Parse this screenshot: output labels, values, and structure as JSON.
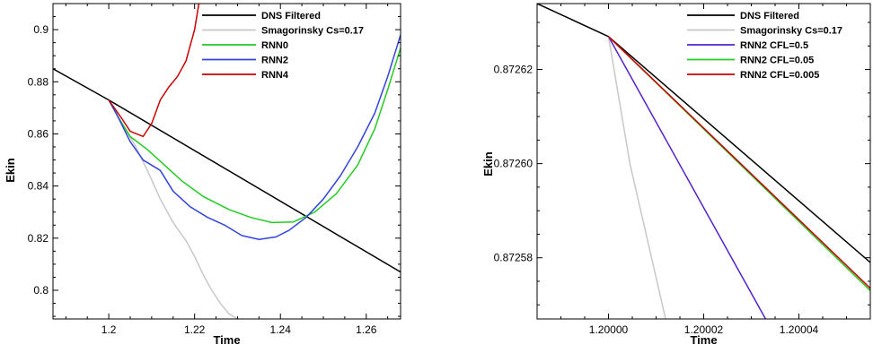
{
  "chart_data": [
    {
      "type": "line",
      "xlabel": "Time",
      "ylabel": "Ekin",
      "xlim": [
        1.187,
        1.268
      ],
      "ylim": [
        0.789,
        0.91
      ],
      "xticks": [
        1.2,
        1.22,
        1.24,
        1.26
      ],
      "xtick_labels": [
        "1.2",
        "1.22",
        "1.24",
        "1.26"
      ],
      "yticks": [
        0.8,
        0.82,
        0.84,
        0.86,
        0.88,
        0.9
      ],
      "ytick_labels": [
        "0.8",
        "0.82",
        "0.84",
        "0.86",
        "0.88",
        "0.9"
      ],
      "grid": false,
      "legend_position": "top-right",
      "series": [
        {
          "name": "DNS Filtered",
          "color": "#000000",
          "points": [
            [
              1.187,
              0.885
            ],
            [
              1.2,
              0.873
            ],
            [
              1.268,
              0.807
            ]
          ]
        },
        {
          "name": "Smagorinsky Cs=0.17",
          "color": "#c8c8c8",
          "points": [
            [
              1.2,
              0.873
            ],
            [
              1.203,
              0.864
            ],
            [
              1.206,
              0.856
            ],
            [
              1.209,
              0.846
            ],
            [
              1.212,
              0.835
            ],
            [
              1.215,
              0.826
            ],
            [
              1.218,
              0.819
            ],
            [
              1.22,
              0.813
            ],
            [
              1.222,
              0.806
            ],
            [
              1.224,
              0.8
            ],
            [
              1.226,
              0.795
            ],
            [
              1.228,
              0.791
            ],
            [
              1.23,
              0.789
            ]
          ]
        },
        {
          "name": "RNN0",
          "color": "#22cc22",
          "points": [
            [
              1.2,
              0.873
            ],
            [
              1.202,
              0.867
            ],
            [
              1.205,
              0.859
            ],
            [
              1.209,
              0.854
            ],
            [
              1.213,
              0.848
            ],
            [
              1.217,
              0.842
            ],
            [
              1.222,
              0.836
            ],
            [
              1.228,
              0.831
            ],
            [
              1.233,
              0.828
            ],
            [
              1.238,
              0.826
            ],
            [
              1.243,
              0.8262
            ],
            [
              1.248,
              0.83
            ],
            [
              1.253,
              0.837
            ],
            [
              1.258,
              0.848
            ],
            [
              1.262,
              0.862
            ],
            [
              1.265,
              0.877
            ],
            [
              1.268,
              0.893
            ]
          ]
        },
        {
          "name": "RNN2",
          "color": "#3344dd",
          "points": [
            [
              1.2,
              0.873
            ],
            [
              1.202,
              0.867
            ],
            [
              1.205,
              0.857
            ],
            [
              1.208,
              0.85
            ],
            [
              1.212,
              0.846
            ],
            [
              1.215,
              0.838
            ],
            [
              1.219,
              0.832
            ],
            [
              1.223,
              0.828
            ],
            [
              1.227,
              0.825
            ],
            [
              1.231,
              0.821
            ],
            [
              1.235,
              0.8195
            ],
            [
              1.239,
              0.8205
            ],
            [
              1.242,
              0.823
            ],
            [
              1.246,
              0.828
            ],
            [
              1.25,
              0.835
            ],
            [
              1.254,
              0.844
            ],
            [
              1.258,
              0.855
            ],
            [
              1.262,
              0.868
            ],
            [
              1.265,
              0.882
            ],
            [
              1.268,
              0.898
            ]
          ]
        },
        {
          "name": "RNN4",
          "color": "#cc0000",
          "points": [
            [
              1.2,
              0.873
            ],
            [
              1.203,
              0.866
            ],
            [
              1.205,
              0.861
            ],
            [
              1.208,
              0.859
            ],
            [
              1.21,
              0.864
            ],
            [
              1.212,
              0.873
            ],
            [
              1.214,
              0.878
            ],
            [
              1.216,
              0.882
            ],
            [
              1.218,
              0.888
            ],
            [
              1.22,
              0.9
            ],
            [
              1.221,
              0.91
            ]
          ]
        }
      ]
    },
    {
      "type": "line",
      "xlabel": "Time",
      "ylabel": "Ekin",
      "xlim": [
        1.199985,
        1.200055
      ],
      "ylim": [
        0.872567,
        0.872634
      ],
      "xticks": [
        1.2,
        1.20002,
        1.20004
      ],
      "xtick_labels": [
        "1.20000",
        "1.20002",
        "1.20004"
      ],
      "yticks": [
        0.87258,
        0.8726,
        0.87262
      ],
      "ytick_labels": [
        "0.87258",
        "0.87260",
        "0.87262"
      ],
      "grid": false,
      "legend_position": "top-right",
      "series": [
        {
          "name": "DNS Filtered",
          "color": "#000000",
          "points": [
            [
              1.199985,
              0.872634
            ],
            [
              1.2,
              0.872627
            ],
            [
              1.200055,
              0.872579
            ]
          ]
        },
        {
          "name": "Smagorinsky Cs=0.17",
          "color": "#c8c8c8",
          "points": [
            [
              1.2,
              0.872627
            ],
            [
              1.2000045,
              0.8726
            ],
            [
              1.200012,
              0.872567
            ]
          ]
        },
        {
          "name": "RNN2 CFL=0.5",
          "color": "#5522cc",
          "points": [
            [
              1.2,
              0.872627
            ],
            [
              1.200033,
              0.872567
            ]
          ]
        },
        {
          "name": "RNN2 CFL=0.05",
          "color": "#22cc22",
          "points": [
            [
              1.2,
              0.872627
            ],
            [
              1.200055,
              0.872573
            ]
          ]
        },
        {
          "name": "RNN2 CFL=0.005",
          "color": "#cc0000",
          "points": [
            [
              1.2,
              0.872627
            ],
            [
              1.200055,
              0.8725735
            ]
          ]
        }
      ]
    }
  ]
}
